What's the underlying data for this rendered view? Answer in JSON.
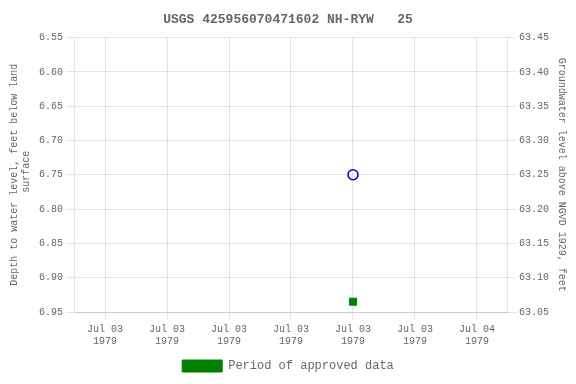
{
  "chart_data": {
    "type": "scatter",
    "title": "USGS 425956070471602 NH-RYW   25",
    "ylabel": "Depth to water level, feet below land\n surface",
    "y2label": "Groundwater level above NGVD 1929, feet",
    "xlim": [
      -2,
      26
    ],
    "xticks": [
      {
        "value": 0,
        "label": "Jul 03\n1979"
      },
      {
        "value": 4,
        "label": "Jul 03\n1979"
      },
      {
        "value": 8,
        "label": "Jul 03\n1979"
      },
      {
        "value": 12,
        "label": "Jul 03\n1979"
      },
      {
        "value": 16,
        "label": "Jul 03\n1979"
      },
      {
        "value": 20,
        "label": "Jul 03\n1979"
      },
      {
        "value": 24,
        "label": "Jul 04\n1979"
      }
    ],
    "ylim": [
      6.95,
      6.55
    ],
    "yticks": [
      6.55,
      {
        "value": 6.6,
        "label": "6.60"
      },
      6.65,
      {
        "value": 6.7,
        "label": "6.70"
      },
      6.75,
      {
        "value": 6.8,
        "label": "6.80"
      },
      6.85,
      {
        "value": 6.9,
        "label": "6.90"
      },
      6.95
    ],
    "y2lim": [
      63.05,
      63.45
    ],
    "y2ticks": [
      63.45,
      {
        "value": 63.4,
        "label": "63.40"
      },
      63.35,
      {
        "value": 63.3,
        "label": "63.30"
      },
      63.25,
      {
        "value": 63.2,
        "label": "63.20"
      },
      63.15,
      {
        "value": 63.1,
        "label": "63.10"
      },
      63.05
    ],
    "series": [
      {
        "color": "#0000cc",
        "marker": "open_circle",
        "x": [
          16
        ],
        "values": [
          6.75
        ]
      },
      {
        "name": "Period of approved data",
        "color": "#008000",
        "marker": "square",
        "x": [
          16
        ],
        "values": [
          6.935
        ]
      }
    ],
    "grid": true,
    "legend": "bottom"
  }
}
